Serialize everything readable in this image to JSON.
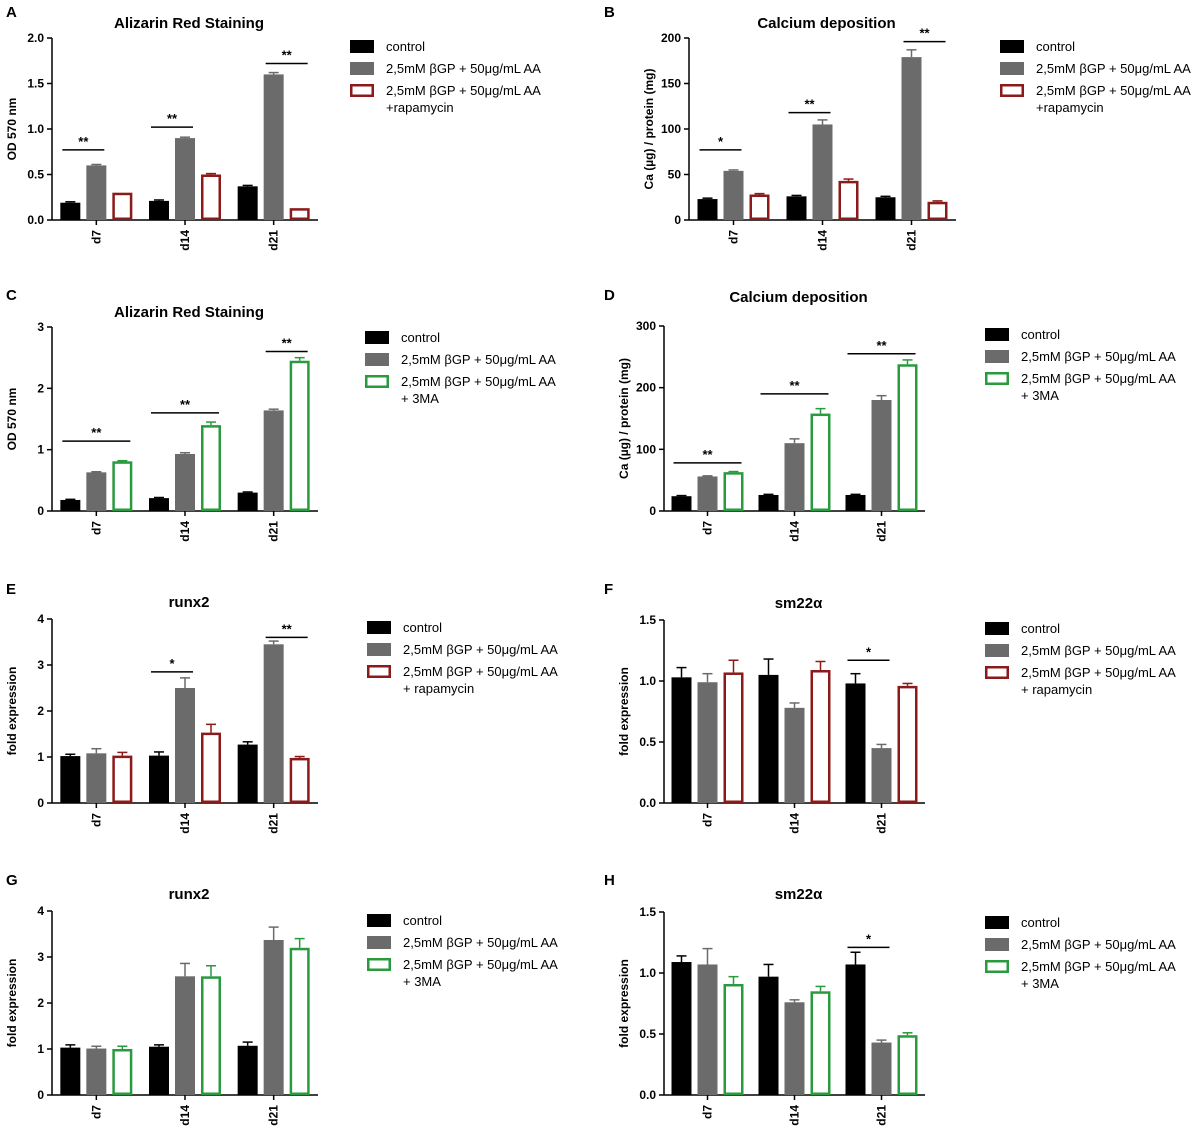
{
  "figure": {
    "colors": {
      "control": "#000000",
      "treated": "#6b6b6b",
      "rapamycin": "#8b1a1a",
      "threema": "#2a9a3f"
    }
  },
  "chart_data": [
    {
      "id": "A",
      "panel_label": "A",
      "type": "bar",
      "title": "Alizarin Red Staining",
      "ylabel": "OD 570 nm",
      "xlabel": "",
      "ylim": [
        0,
        2.0
      ],
      "yticks": [
        0,
        0.5,
        1.0,
        1.5,
        2.0
      ],
      "ytick_labels": [
        "0.0",
        "0.5",
        "1.0",
        "1.5",
        "2.0"
      ],
      "categories": [
        "d7",
        "d14",
        "d21"
      ],
      "series": [
        {
          "name": "control",
          "style": "control",
          "values": [
            0.19,
            0.21,
            0.37
          ],
          "errors": [
            0.01,
            0.01,
            0.01
          ]
        },
        {
          "name": "2,5mM βGP + 50μg/mL AA",
          "style": "treated",
          "values": [
            0.6,
            0.9,
            1.6
          ],
          "errors": [
            0.01,
            0.01,
            0.02
          ]
        },
        {
          "name": "2,5mM βGP + 50μg/mL AA",
          "name_line2": "+rapamycin",
          "style": "rapamycin",
          "values": [
            0.3,
            0.5,
            0.13
          ],
          "errors": [
            0.0,
            0.01,
            0.0
          ]
        }
      ],
      "significance": [
        {
          "from_series": 0,
          "to_series": 1,
          "category": 0,
          "y": 0.77,
          "label": "**"
        },
        {
          "from_series": 0,
          "to_series": 1,
          "category": 1,
          "y": 1.02,
          "label": "**"
        },
        {
          "from_series": 1,
          "to_series": 2,
          "category": 2,
          "y": 1.72,
          "label": "**"
        }
      ]
    },
    {
      "id": "B",
      "panel_label": "B",
      "type": "bar",
      "title": "Calcium deposition",
      "ylabel": "Ca (µg) / protein (mg)",
      "xlabel": "",
      "ylim": [
        0,
        200
      ],
      "yticks": [
        0,
        50,
        100,
        150,
        200
      ],
      "ytick_labels": [
        "0",
        "50",
        "100",
        "150",
        "200"
      ],
      "categories": [
        "d7",
        "d14",
        "d21"
      ],
      "series": [
        {
          "name": "control",
          "style": "control",
          "values": [
            23,
            26,
            25
          ],
          "errors": [
            1,
            1,
            1
          ]
        },
        {
          "name": "2,5mM βGP + 50μg/mL AA",
          "style": "treated",
          "values": [
            54,
            105,
            179
          ],
          "errors": [
            1,
            5,
            8
          ]
        },
        {
          "name": "2,5mM βGP + 50μg/mL AA",
          "name_line2": "+rapamycin",
          "style": "rapamycin",
          "values": [
            28,
            43,
            20
          ],
          "errors": [
            1,
            2,
            1
          ]
        }
      ],
      "significance": [
        {
          "from_series": 0,
          "to_series": 1,
          "category": 0,
          "y": 77,
          "label": "*"
        },
        {
          "from_series": 0,
          "to_series": 1,
          "category": 1,
          "y": 118,
          "label": "**"
        },
        {
          "from_series": 1,
          "to_series": 2,
          "category": 2,
          "y": 196,
          "label": "**"
        }
      ]
    },
    {
      "id": "C",
      "panel_label": "C",
      "type": "bar",
      "title": "Alizarin Red Staining",
      "ylabel": "OD 570 nm",
      "xlabel": "",
      "ylim": [
        0,
        3
      ],
      "yticks": [
        0,
        1,
        2,
        3
      ],
      "ytick_labels": [
        "0",
        "1",
        "2",
        "3"
      ],
      "categories": [
        "d7",
        "d14",
        "d21"
      ],
      "series": [
        {
          "name": "control",
          "style": "control",
          "values": [
            0.18,
            0.21,
            0.3
          ],
          "errors": [
            0.01,
            0.01,
            0.01
          ]
        },
        {
          "name": "2,5mM βGP + 50μg/mL AA",
          "style": "treated",
          "values": [
            0.63,
            0.93,
            1.64
          ],
          "errors": [
            0.01,
            0.02,
            0.02
          ]
        },
        {
          "name": "2,5mM βGP + 50μg/mL AA",
          "name_line2": "+ 3MA",
          "style": "threema",
          "values": [
            0.81,
            1.4,
            2.45
          ],
          "errors": [
            0.01,
            0.05,
            0.05
          ]
        }
      ],
      "significance": [
        {
          "from_series": 0,
          "to_series": 2,
          "category": 0,
          "y": 1.14,
          "label": "**"
        },
        {
          "from_series": 0,
          "to_series": 2,
          "category": 1,
          "y": 1.6,
          "label": "**"
        },
        {
          "from_series": 1,
          "to_series": 2,
          "category": 2,
          "y": 2.6,
          "label": "**"
        }
      ]
    },
    {
      "id": "D",
      "panel_label": "D",
      "type": "bar",
      "title": "Calcium deposition",
      "ylabel": "Ca (µg) / protein (mg)",
      "xlabel": "",
      "ylim": [
        0,
        300
      ],
      "yticks": [
        0,
        100,
        200,
        300
      ],
      "ytick_labels": [
        "0",
        "100",
        "200",
        "300"
      ],
      "categories": [
        "d7",
        "d14",
        "d21"
      ],
      "series": [
        {
          "name": "control",
          "style": "control",
          "values": [
            24,
            26,
            26
          ],
          "errors": [
            1,
            1,
            1
          ]
        },
        {
          "name": "2,5mM βGP + 50μg/mL AA",
          "style": "treated",
          "values": [
            56,
            110,
            180
          ],
          "errors": [
            1,
            7,
            7
          ]
        },
        {
          "name": "2,5mM βGP + 50μg/mL AA",
          "name_line2": "+ 3MA",
          "style": "threema",
          "values": [
            63,
            158,
            238
          ],
          "errors": [
            1,
            8,
            7
          ]
        }
      ],
      "significance": [
        {
          "from_series": 0,
          "to_series": 2,
          "category": 0,
          "y": 78,
          "label": "**"
        },
        {
          "from_series": 0,
          "to_series": 2,
          "category": 1,
          "y": 190,
          "label": "**"
        },
        {
          "from_series": 0,
          "to_series": 2,
          "category": 2,
          "y": 255,
          "label": "**"
        }
      ]
    },
    {
      "id": "E",
      "panel_label": "E",
      "type": "bar",
      "title": "runx2",
      "ylabel": "fold expression",
      "xlabel": "",
      "ylim": [
        0,
        4
      ],
      "yticks": [
        0,
        1,
        2,
        3,
        4
      ],
      "ytick_labels": [
        "0",
        "1",
        "2",
        "3",
        "4"
      ],
      "categories": [
        "d7",
        "d14",
        "d21"
      ],
      "series": [
        {
          "name": "control",
          "style": "control",
          "values": [
            1.02,
            1.03,
            1.27
          ],
          "errors": [
            0.04,
            0.08,
            0.06
          ]
        },
        {
          "name": "2,5mM βGP + 50μg/mL AA",
          "style": "treated",
          "values": [
            1.08,
            2.5,
            3.45
          ],
          "errors": [
            0.1,
            0.22,
            0.07
          ]
        },
        {
          "name": "2,5mM βGP + 50μg/mL AA",
          "name_line2": "+ rapamycin",
          "style": "rapamycin",
          "values": [
            1.03,
            1.53,
            0.98
          ],
          "errors": [
            0.07,
            0.18,
            0.03
          ]
        }
      ],
      "significance": [
        {
          "from_series": 0,
          "to_series": 1,
          "category": 1,
          "y": 2.85,
          "label": "*"
        },
        {
          "from_series": 1,
          "to_series": 2,
          "category": 2,
          "y": 3.6,
          "label": "**"
        }
      ]
    },
    {
      "id": "F",
      "panel_label": "F",
      "type": "bar",
      "title": "sm22α",
      "ylabel": "fold expression",
      "xlabel": "",
      "ylim": [
        0,
        1.5
      ],
      "yticks": [
        0,
        0.5,
        1.0,
        1.5
      ],
      "ytick_labels": [
        "0.0",
        "0.5",
        "1.0",
        "1.5"
      ],
      "categories": [
        "d7",
        "d14",
        "d21"
      ],
      "series": [
        {
          "name": "control",
          "style": "control",
          "values": [
            1.03,
            1.05,
            0.98
          ],
          "errors": [
            0.08,
            0.13,
            0.08
          ]
        },
        {
          "name": "2,5mM βGP + 50μg/mL AA",
          "style": "treated",
          "values": [
            0.99,
            0.78,
            0.45
          ],
          "errors": [
            0.07,
            0.04,
            0.03
          ]
        },
        {
          "name": "2,5mM βGP + 50μg/mL AA",
          "name_line2": "+ rapamycin",
          "style": "rapamycin",
          "values": [
            1.07,
            1.09,
            0.96
          ],
          "errors": [
            0.1,
            0.07,
            0.02
          ]
        }
      ],
      "significance": [
        {
          "from_series": 0,
          "to_series": 1,
          "category": 2,
          "y": 1.17,
          "label": "*"
        }
      ]
    },
    {
      "id": "G",
      "panel_label": "G",
      "type": "bar",
      "title": "runx2",
      "ylabel": "fold expression",
      "xlabel": "",
      "ylim": [
        0,
        4
      ],
      "yticks": [
        0,
        1,
        2,
        3,
        4
      ],
      "ytick_labels": [
        "0",
        "1",
        "2",
        "3",
        "4"
      ],
      "categories": [
        "d7",
        "d14",
        "d21"
      ],
      "series": [
        {
          "name": "control",
          "style": "control",
          "values": [
            1.03,
            1.05,
            1.07
          ],
          "errors": [
            0.06,
            0.04,
            0.08
          ]
        },
        {
          "name": "2,5mM βGP + 50μg/mL AA",
          "style": "treated",
          "values": [
            1.01,
            2.58,
            3.37
          ],
          "errors": [
            0.05,
            0.28,
            0.28
          ]
        },
        {
          "name": "2,5mM βGP + 50μg/mL AA",
          "name_line2": "+ 3MA",
          "style": "threema",
          "values": [
            1.0,
            2.58,
            3.2
          ],
          "errors": [
            0.06,
            0.23,
            0.2
          ]
        }
      ],
      "significance": []
    },
    {
      "id": "H",
      "panel_label": "H",
      "type": "bar",
      "title": "sm22α",
      "ylabel": "fold expression",
      "xlabel": "",
      "ylim": [
        0,
        1.5
      ],
      "yticks": [
        0,
        0.5,
        1.0,
        1.5
      ],
      "ytick_labels": [
        "0.0",
        "0.5",
        "1.0",
        "1.5"
      ],
      "categories": [
        "d7",
        "d14",
        "d21"
      ],
      "series": [
        {
          "name": "control",
          "style": "control",
          "values": [
            1.09,
            0.97,
            1.07
          ],
          "errors": [
            0.05,
            0.1,
            0.1
          ]
        },
        {
          "name": "2,5mM βGP + 50μg/mL AA",
          "style": "treated",
          "values": [
            1.07,
            0.76,
            0.43
          ],
          "errors": [
            0.13,
            0.02,
            0.02
          ]
        },
        {
          "name": "2,5mM βGP + 50μg/mL AA",
          "name_line2": "+ 3MA",
          "style": "threema",
          "values": [
            0.91,
            0.85,
            0.49
          ],
          "errors": [
            0.06,
            0.04,
            0.02
          ]
        }
      ],
      "significance": [
        {
          "from_series": 0,
          "to_series": 1,
          "category": 2,
          "y": 1.21,
          "label": "*"
        }
      ]
    }
  ]
}
